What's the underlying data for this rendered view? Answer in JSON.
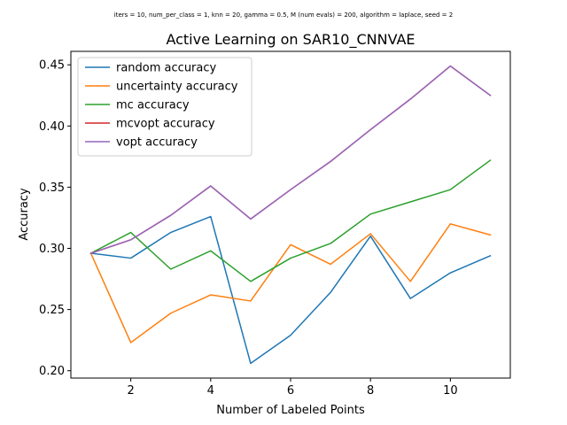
{
  "chart_data": {
    "type": "line",
    "suptitle": "iters = 10, num_per_class = 1, knn = 20, gamma = 0.5, M (num evals) = 200, algorithm = laplace, seed = 2",
    "title": "Active Learning on SAR10_CNNVAE",
    "xlabel": "Number of Labeled Points",
    "ylabel": "Accuracy",
    "xlim": [
      0.5,
      11.5
    ],
    "ylim": [
      0.194,
      0.461
    ],
    "xticks": [
      2,
      4,
      6,
      8,
      10
    ],
    "yticks": [
      0.2,
      0.25,
      0.3,
      0.35,
      0.4,
      0.45
    ],
    "ytick_labels": [
      "0.20",
      "0.25",
      "0.30",
      "0.35",
      "0.40",
      "0.45"
    ],
    "grid": false,
    "legend_position": "top-left",
    "x": [
      1,
      2,
      3,
      4,
      5,
      6,
      7,
      8,
      9,
      10,
      11
    ],
    "series": [
      {
        "name": "random accuracy",
        "color": "#1f77b4",
        "values": [
          0.296,
          0.292,
          0.313,
          0.326,
          0.206,
          0.229,
          0.264,
          0.31,
          0.259,
          0.28,
          0.294
        ]
      },
      {
        "name": "uncertainty accuracy",
        "color": "#ff7f0e",
        "values": [
          0.296,
          0.223,
          0.247,
          0.262,
          0.257,
          0.303,
          0.287,
          0.312,
          0.273,
          0.32,
          0.311
        ]
      },
      {
        "name": "mc accuracy",
        "color": "#2ca02c",
        "values": [
          0.296,
          0.313,
          0.283,
          0.298,
          0.273,
          0.292,
          0.304,
          0.328,
          0.338,
          0.348,
          0.372
        ]
      },
      {
        "name": "mcvopt accuracy",
        "color": "#d62728",
        "values": [
          0.296,
          0.307,
          0.327,
          0.351,
          0.324,
          0.348,
          0.371,
          0.397,
          0.422,
          0.449,
          0.425
        ]
      },
      {
        "name": "vopt accuracy",
        "color": "#9467bd",
        "values": [
          0.296,
          0.307,
          0.327,
          0.351,
          0.324,
          0.348,
          0.371,
          0.397,
          0.422,
          0.449,
          0.425
        ]
      }
    ]
  }
}
